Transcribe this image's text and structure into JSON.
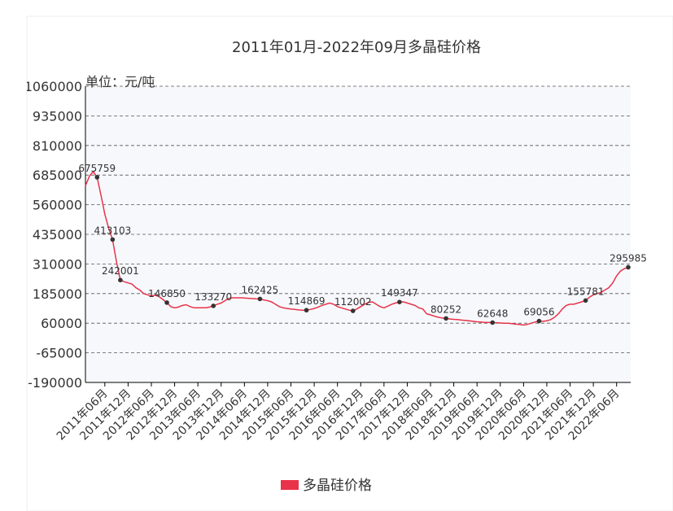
{
  "chart_data": {
    "type": "line",
    "title": "2011年01月-2022年09月多晶硅价格",
    "unit_label": "单位：元/吨",
    "categories": [
      null,
      null,
      null,
      null,
      null,
      "2011年06月",
      null,
      null,
      null,
      null,
      null,
      "2011年12月",
      null,
      null,
      null,
      null,
      null,
      "2012年06月",
      null,
      null,
      null,
      null,
      null,
      "2012年12月",
      null,
      null,
      null,
      null,
      null,
      "2013年06月",
      null,
      null,
      null,
      null,
      null,
      "2013年12月",
      null,
      null,
      null,
      null,
      null,
      "2014年06月",
      null,
      null,
      null,
      null,
      null,
      "2014年12月",
      null,
      null,
      null,
      null,
      null,
      "2015年06月",
      null,
      null,
      null,
      null,
      null,
      "2015年12月",
      null,
      null,
      null,
      null,
      null,
      "2016年06月",
      null,
      null,
      null,
      null,
      null,
      "2016年12月",
      null,
      null,
      null,
      null,
      null,
      "2017年06月",
      null,
      null,
      null,
      null,
      null,
      "2017年12月",
      null,
      null,
      null,
      null,
      null,
      "2018年06月",
      null,
      null,
      null,
      null,
      null,
      "2018年12月",
      null,
      null,
      null,
      null,
      null,
      "2019年06月",
      null,
      null,
      null,
      null,
      null,
      "2019年12月",
      null,
      null,
      null,
      null,
      null,
      "2020年06月",
      null,
      null,
      null,
      null,
      null,
      "2020年12月",
      null,
      null,
      null,
      null,
      null,
      "2021年06月",
      null,
      null,
      null,
      null,
      null,
      "2021年12月",
      null,
      null,
      null,
      null,
      null,
      "2022年06月",
      null,
      null,
      null
    ],
    "series": [
      {
        "name": "多晶硅价格",
        "color": "#e8334a",
        "values": [
          640000,
          680000,
          700000,
          675759,
          600000,
          520000,
          460000,
          413103,
          320000,
          242001,
          235000,
          230000,
          225000,
          210000,
          200000,
          185000,
          180000,
          175000,
          178000,
          172000,
          160000,
          146850,
          130000,
          125000,
          128000,
          135000,
          138000,
          130000,
          125000,
          125000,
          125000,
          125000,
          128000,
          133270,
          140000,
          145000,
          155000,
          165000,
          167000,
          167000,
          167000,
          166000,
          165000,
          164000,
          163000,
          162425,
          158000,
          155000,
          150000,
          140000,
          130000,
          125000,
          122000,
          120000,
          118000,
          116000,
          115000,
          114869,
          118000,
          122000,
          128000,
          135000,
          140000,
          145000,
          140000,
          130000,
          125000,
          120000,
          115000,
          112002,
          120000,
          130000,
          140000,
          148000,
          150000,
          140000,
          130000,
          125000,
          132000,
          140000,
          145000,
          149347,
          150000,
          145000,
          140000,
          135000,
          125000,
          120000,
          100000,
          95000,
          90000,
          85000,
          82000,
          80252,
          78000,
          76000,
          75000,
          73000,
          72000,
          70000,
          68000,
          66000,
          65000,
          63000,
          63000,
          62648,
          62000,
          61000,
          60000,
          60000,
          58000,
          56000,
          55000,
          52000,
          55000,
          60000,
          65000,
          69056,
          68000,
          70000,
          75000,
          85000,
          100000,
          120000,
          135000,
          140000,
          140000,
          145000,
          150000,
          155781,
          170000,
          180000,
          185000,
          190000,
          200000,
          210000,
          230000,
          260000,
          280000,
          290000,
          295985
        ],
        "value_labels": [
          null,
          null,
          null,
          "675759",
          null,
          null,
          null,
          "413103",
          null,
          "242001",
          null,
          null,
          null,
          null,
          null,
          null,
          null,
          null,
          null,
          null,
          null,
          "146850",
          null,
          null,
          null,
          null,
          null,
          null,
          null,
          null,
          null,
          null,
          null,
          "133270",
          null,
          null,
          null,
          null,
          null,
          null,
          null,
          null,
          null,
          null,
          null,
          "162425",
          null,
          null,
          null,
          null,
          null,
          null,
          null,
          null,
          null,
          null,
          null,
          "114869",
          null,
          null,
          null,
          null,
          null,
          null,
          null,
          null,
          null,
          null,
          null,
          "112002",
          null,
          null,
          null,
          null,
          null,
          null,
          null,
          null,
          null,
          null,
          null,
          "149347",
          null,
          null,
          null,
          null,
          null,
          null,
          null,
          null,
          null,
          null,
          null,
          "80252",
          null,
          null,
          null,
          null,
          null,
          null,
          null,
          null,
          null,
          null,
          null,
          "62648",
          null,
          null,
          null,
          null,
          null,
          null,
          null,
          null,
          null,
          null,
          null,
          "69056",
          null,
          null,
          null,
          null,
          null,
          null,
          null,
          null,
          null,
          null,
          null,
          "155781",
          null,
          null,
          null,
          null,
          null,
          null,
          null,
          null,
          null,
          null,
          "295985"
        ]
      }
    ],
    "ylim": [
      -190000,
      1060000
    ],
    "yticks": [
      1060000,
      935000,
      810000,
      685000,
      560000,
      435000,
      310000,
      185000,
      60000,
      -65000,
      -190000
    ],
    "grid": true,
    "legend": "bottom"
  }
}
